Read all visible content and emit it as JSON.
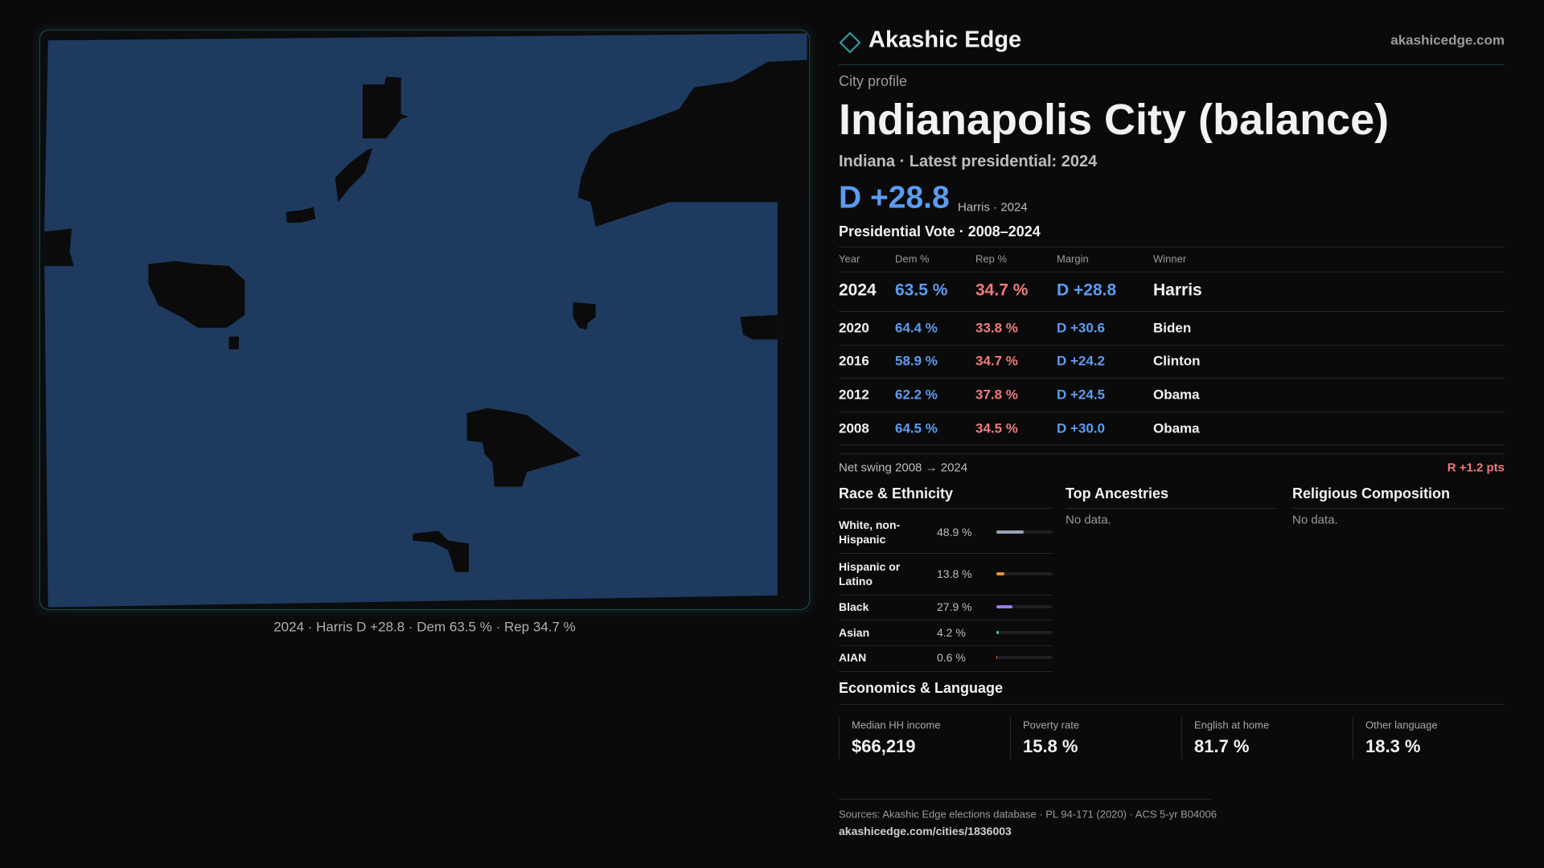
{
  "brand": {
    "name": "Akashic Edge",
    "url": "akashicedge.com"
  },
  "header": {
    "kicker": "City profile",
    "title": "Indianapolis City (balance)",
    "subtitle": "Indiana · Latest presidential: 2024",
    "margin": "D +28.8",
    "margin_note": "Harris · 2024"
  },
  "map": {
    "caption": "2024 · Harris D +28.8 · Dem 63.5 % · Rep 34.7 %"
  },
  "vote_table": {
    "title": "Presidential Vote · 2008–2024",
    "columns": [
      "Year",
      "Dem %",
      "Rep %",
      "Margin",
      "Winner"
    ],
    "rows": [
      [
        "2024",
        "63.5 %",
        "34.7 %",
        "D +28.8",
        "Harris"
      ],
      [
        "2020",
        "64.4 %",
        "33.8 %",
        "D +30.6",
        "Biden"
      ],
      [
        "2016",
        "58.9 %",
        "34.7 %",
        "D +24.2",
        "Clinton"
      ],
      [
        "2012",
        "62.2 %",
        "37.8 %",
        "D +24.5",
        "Obama"
      ],
      [
        "2008",
        "64.5 %",
        "34.5 %",
        "D +30.0",
        "Obama"
      ]
    ]
  },
  "swing": {
    "label": "Net swing 2008 → 2024",
    "value": "R +1.2 pts"
  },
  "race": {
    "title": "Race & Ethnicity",
    "rows": [
      {
        "label": "White, non-Hispanic",
        "value": 48.9,
        "value_label": "48.9 %",
        "color": "#9aa3b5"
      },
      {
        "label": "Hispanic or Latino",
        "value": 13.8,
        "value_label": "13.8 %",
        "color": "#e8912e"
      },
      {
        "label": "Black",
        "value": 27.9,
        "value_label": "27.9 %",
        "color": "#9b7bea"
      },
      {
        "label": "Asian",
        "value": 4.2,
        "value_label": "4.2 %",
        "color": "#3fc1a5"
      },
      {
        "label": "AIAN",
        "value": 0.6,
        "value_label": "0.6 %",
        "color": "#e8602e"
      }
    ]
  },
  "ancestries": {
    "title": "Top Ancestries",
    "note": "No data."
  },
  "religion": {
    "title": "Religious Composition",
    "note": "No data."
  },
  "economics": {
    "title": "Economics & Language",
    "cards": [
      {
        "label": "Median HH income",
        "value": "$66,219"
      },
      {
        "label": "Poverty rate",
        "value": "15.8 %"
      },
      {
        "label": "English at home",
        "value": "81.7 %"
      },
      {
        "label": "Other language",
        "value": "18.3 %"
      }
    ]
  },
  "footer": {
    "sources": "Sources: Akashic Edge elections database · PL 94-171 (2020) · ACS 5-yr B04006",
    "url": "akashicedge.com/cities/1836003"
  }
}
